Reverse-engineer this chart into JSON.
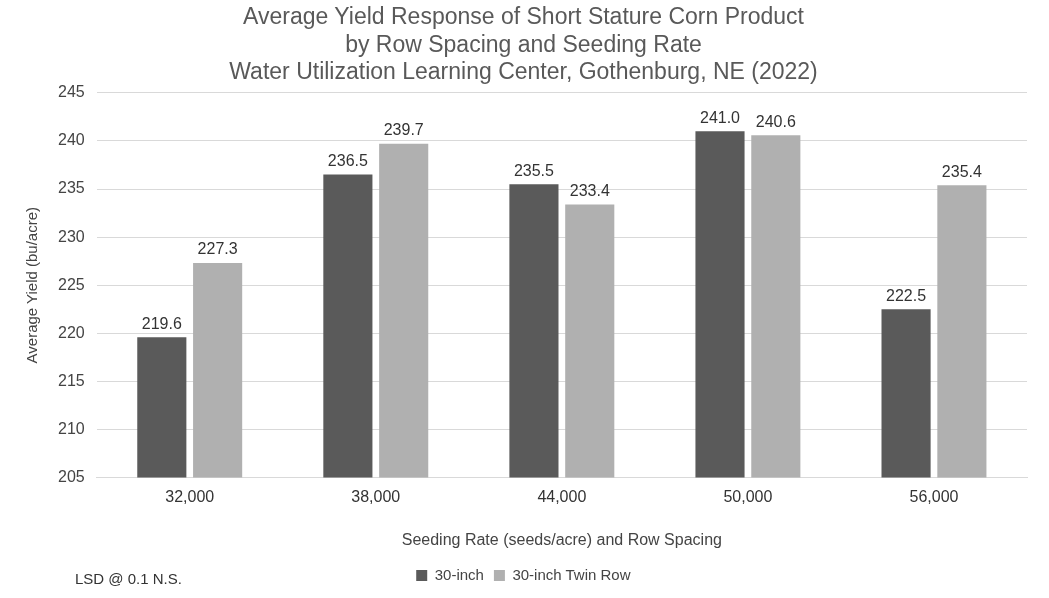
{
  "chart_data": {
    "type": "bar",
    "title": "Average Yield Response of Short Stature Corn Product\nby Row Spacing and Seeding Rate\nWater Utilization Learning Center, Gothenburg, NE (2022)",
    "xlabel": "Seeding Rate (seeds/acre) and Row Spacing",
    "ylabel": "Average Yield (bu/acre)",
    "categories": [
      "32,000",
      "38,000",
      "44,000",
      "50,000",
      "56,000"
    ],
    "series": [
      {
        "name": "30-inch",
        "color": "#5a5a5a",
        "values": [
          219.6,
          236.5,
          235.5,
          241.0,
          222.5
        ],
        "value_labels": [
          "219.6",
          "236.5",
          "235.5",
          "241.0",
          "222.5"
        ]
      },
      {
        "name": "30-inch Twin Row",
        "color": "#b0b0b0",
        "values": [
          227.3,
          239.7,
          233.4,
          240.6,
          235.4
        ],
        "value_labels": [
          "227.3",
          "239.7",
          "233.4",
          "240.6",
          "235.4"
        ]
      }
    ],
    "ylim": [
      205,
      245
    ],
    "yticks": [
      205,
      210,
      215,
      220,
      225,
      230,
      235,
      240,
      245
    ],
    "grid": "y",
    "legend": "bottom",
    "annotations": [
      "LSD @ 0.1 N.S."
    ]
  }
}
